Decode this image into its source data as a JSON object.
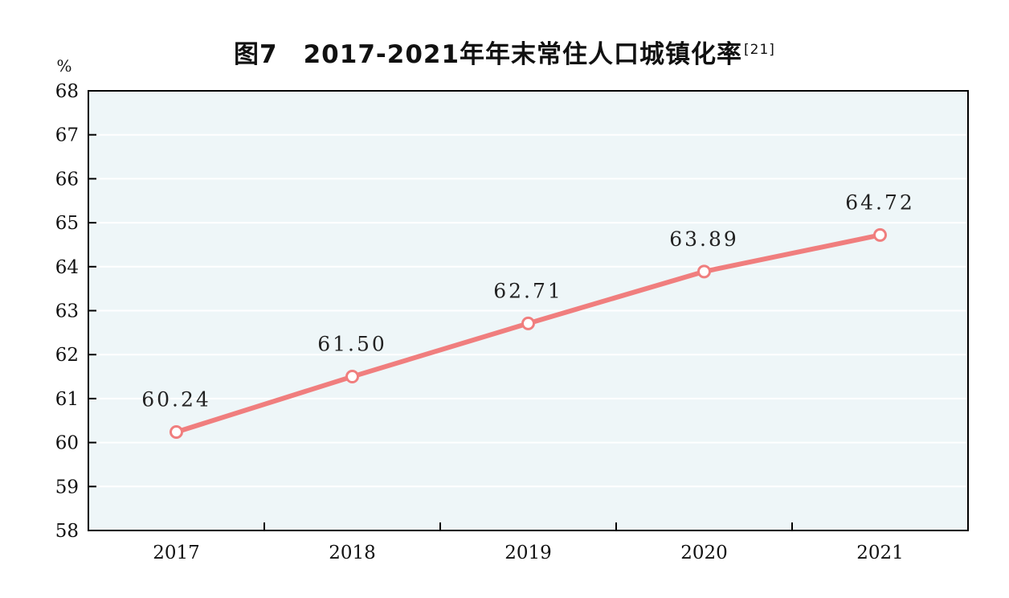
{
  "title": {
    "prefix": "图7",
    "text": "2017-2021年年末常住人口城镇化率",
    "superscript": "[21]"
  },
  "colors": {
    "plot_background": "#eef6f8",
    "line": "#f07e7e",
    "marker_fill": "#ffffff",
    "axis": "#000000",
    "grid": "#ffffff"
  },
  "chart_data": {
    "type": "line",
    "title": "图7　2017-2021年年末常住人口城镇化率[21]",
    "ylabel": "%",
    "xlabel": "",
    "categories": [
      "2017",
      "2018",
      "2019",
      "2020",
      "2021"
    ],
    "values": [
      60.24,
      61.5,
      62.71,
      63.89,
      64.72
    ],
    "data_labels": [
      "60.24",
      "61.50",
      "62.71",
      "63.89",
      "64.72"
    ],
    "ylim": [
      58,
      68
    ],
    "yticks": [
      "58",
      "59",
      "60",
      "61",
      "62",
      "63",
      "64",
      "65",
      "66",
      "67",
      "68"
    ],
    "grid": true,
    "legend": "none"
  }
}
